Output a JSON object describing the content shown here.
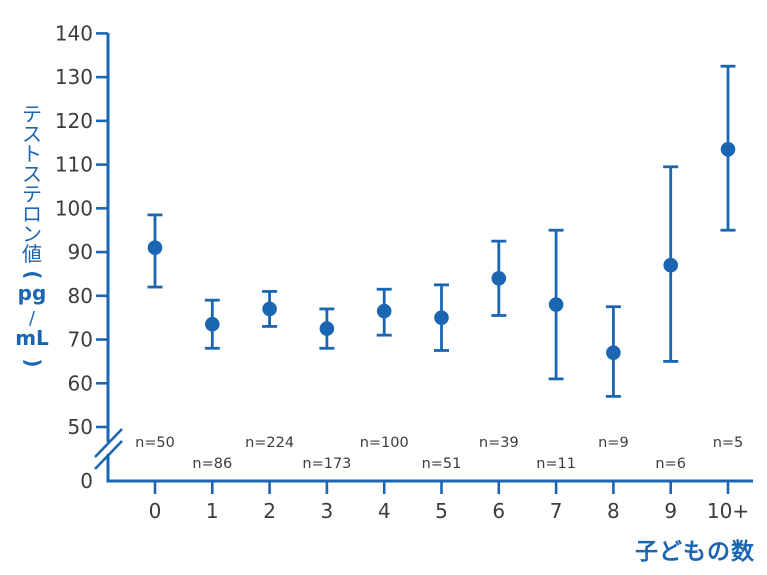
{
  "figure": {
    "background": "#ffffff"
  },
  "chart_data": {
    "type": "scatter",
    "subtype": "mean-with-95ci-error-bars",
    "title": "",
    "xlabel": "子どもの数",
    "ylabel": "テストステロン値（pg／mL）",
    "categories": [
      "0",
      "1",
      "2",
      "3",
      "4",
      "5",
      "6",
      "7",
      "8",
      "9",
      "10+"
    ],
    "n_labels": [
      "n=50",
      "n=86",
      "n=224",
      "n=173",
      "n=100",
      "n=51",
      "n=39",
      "n=11",
      "n=9",
      "n=6",
      "n=5"
    ],
    "series": [
      {
        "name": "テストステロン値",
        "means": [
          91,
          73.5,
          77,
          72.5,
          76.5,
          75,
          84,
          78,
          67,
          87,
          113.5
        ],
        "upper": [
          98.5,
          79,
          81,
          77,
          81.5,
          82.5,
          92.5,
          95,
          77.5,
          109.5,
          132.5
        ],
        "lower": [
          82,
          68,
          73,
          68,
          71,
          67.5,
          75.5,
          61,
          57,
          65,
          95
        ]
      }
    ],
    "yticks": [
      0,
      50,
      60,
      70,
      80,
      90,
      100,
      110,
      120,
      130,
      140
    ],
    "ylim": [
      0,
      140
    ],
    "axis_break_between": [
      0,
      50
    ],
    "grid": false,
    "legend": false,
    "colors": {
      "accent": "#1b66b3",
      "label_text": "#3c3c3c"
    },
    "ylabel_stack": [
      {
        "t": "テ",
        "kind": "kana"
      },
      {
        "t": "ス",
        "kind": "kana"
      },
      {
        "t": "ト",
        "kind": "kana"
      },
      {
        "t": "ス",
        "kind": "kana"
      },
      {
        "t": "テ",
        "kind": "kana"
      },
      {
        "t": "ロ",
        "kind": "kana"
      },
      {
        "t": "ン",
        "kind": "kana"
      },
      {
        "t": "値",
        "kind": "kana"
      },
      {
        "t": "(",
        "kind": "paren"
      },
      {
        "t": "pg",
        "kind": "latin"
      },
      {
        "t": "/",
        "kind": "slash"
      },
      {
        "t": "mL",
        "kind": "latin"
      },
      {
        "t": ")",
        "kind": "paren"
      }
    ]
  }
}
